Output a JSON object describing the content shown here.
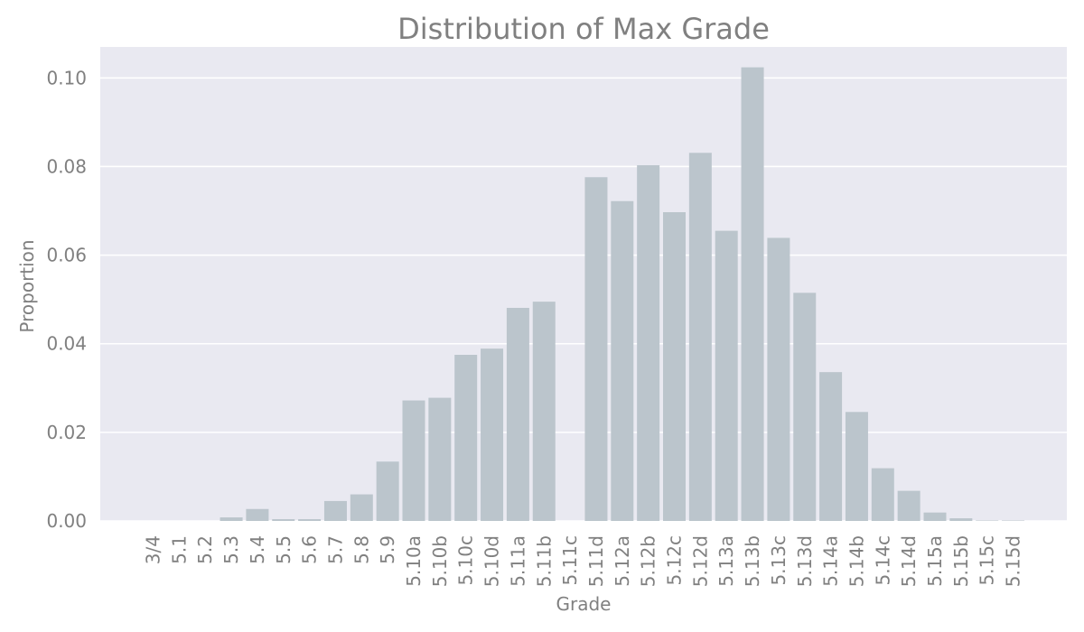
{
  "chart_data": {
    "type": "bar",
    "title": "Distribution of Max Grade",
    "xlabel": "Grade",
    "ylabel": "Proportion",
    "categories": [
      "3/4",
      "5.1",
      "5.2",
      "5.3",
      "5.4",
      "5.5",
      "5.6",
      "5.7",
      "5.8",
      "5.9",
      "5.10a",
      "5.10b",
      "5.10c",
      "5.10d",
      "5.11a",
      "5.11b",
      "5.11c",
      "5.11d",
      "5.12a",
      "5.12b",
      "5.12c",
      "5.12d",
      "5.13a",
      "5.13b",
      "5.13c",
      "5.13d",
      "5.14a",
      "5.14b",
      "5.14c",
      "5.14d",
      "5.15a",
      "5.15b",
      "5.15c",
      "5.15d"
    ],
    "values": [
      0.0,
      0.0,
      0.0,
      0.0008,
      0.0027,
      0.0004,
      0.0004,
      0.0045,
      0.006,
      0.0134,
      0.0272,
      0.0278,
      0.0375,
      0.0389,
      0.0481,
      0.0495,
      0.0,
      0.0776,
      0.0722,
      0.0803,
      0.0697,
      0.0831,
      0.0655,
      0.1024,
      0.0639,
      0.0515,
      0.0336,
      0.0246,
      0.0119,
      0.0068,
      0.0019,
      0.0006,
      0.0001,
      0.0001
    ],
    "ylim": [
      0,
      0.107
    ],
    "yticks": [
      "0.00",
      "0.02",
      "0.04",
      "0.06",
      "0.08",
      "0.10"
    ],
    "grid": true,
    "colors": {
      "bar": "#bbc5cc",
      "plot_background": "#e9e9f1",
      "grid": "#ffffff",
      "text": "#808080"
    }
  }
}
